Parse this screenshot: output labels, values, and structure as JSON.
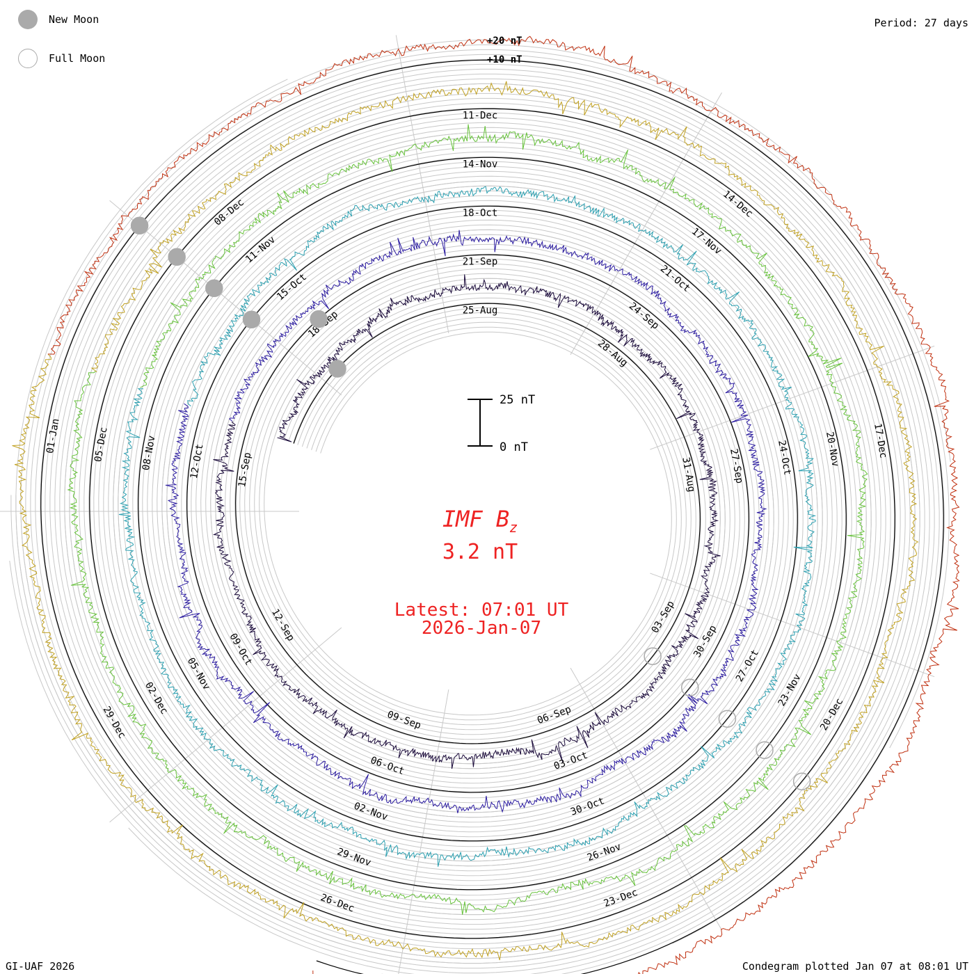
{
  "legend": {
    "new_moon_label": "New Moon",
    "full_moon_label": "Full Moon"
  },
  "period_label": "Period: 27 days",
  "footer_left": "GI-UAF 2026",
  "footer_right": "Condegram plotted Jan 07 at 08:01 UT",
  "center": {
    "title_main": "IMF B",
    "title_sub": "z",
    "value": "3.2 nT",
    "latest_line1": "Latest: 07:01 UT",
    "latest_line2": "2026-Jan-07"
  },
  "scale_bar": {
    "top_label": "25 nT",
    "bottom_label": "0 nT"
  },
  "ring_scale_labels": [
    "+20 nT",
    "+10 nT"
  ],
  "colors": {
    "text_red": "#ee2222",
    "grid": "#c8c8c8",
    "moon": "#aaaaaa",
    "rings": [
      "#1a0a3a",
      "#2a1aa0",
      "#2a9fb0",
      "#66c23a",
      "#c0a020",
      "#c03010"
    ]
  },
  "chart_data": {
    "type": "line",
    "period_days": 27,
    "units": "nT",
    "series": [
      {
        "date_labels": [
          "25-Aug",
          "28-Aug",
          "31-Aug",
          "03-Sep",
          "06-Sep",
          "09-Sep",
          "12-Sep",
          "15-Sep",
          "18-Sep"
        ]
      },
      {
        "date_labels": [
          "21-Sep",
          "24-Sep",
          "27-Sep",
          "30-Sep",
          "03-Oct",
          "06-Oct",
          "09-Oct",
          "12-Oct",
          "15-Oct"
        ]
      },
      {
        "date_labels": [
          "18-Oct",
          "21-Oct",
          "24-Oct",
          "27-Oct",
          "30-Oct",
          "02-Nov",
          "05-Nov",
          "08-Nov",
          "11-Nov"
        ]
      },
      {
        "date_labels": [
          "14-Nov",
          "17-Nov",
          "20-Nov",
          "23-Nov",
          "26-Nov",
          "29-Nov",
          "02-Dec",
          "05-Dec",
          "08-Dec"
        ]
      },
      {
        "date_labels": [
          "11-Dec",
          "14-Dec",
          "17-Dec",
          "20-Dec",
          "23-Dec",
          "26-Dec",
          "29-Dec",
          "01-Jan"
        ]
      }
    ],
    "latest_value": 3.2,
    "latest_time": "07:01 UT",
    "latest_date": "2026-Jan-07"
  }
}
